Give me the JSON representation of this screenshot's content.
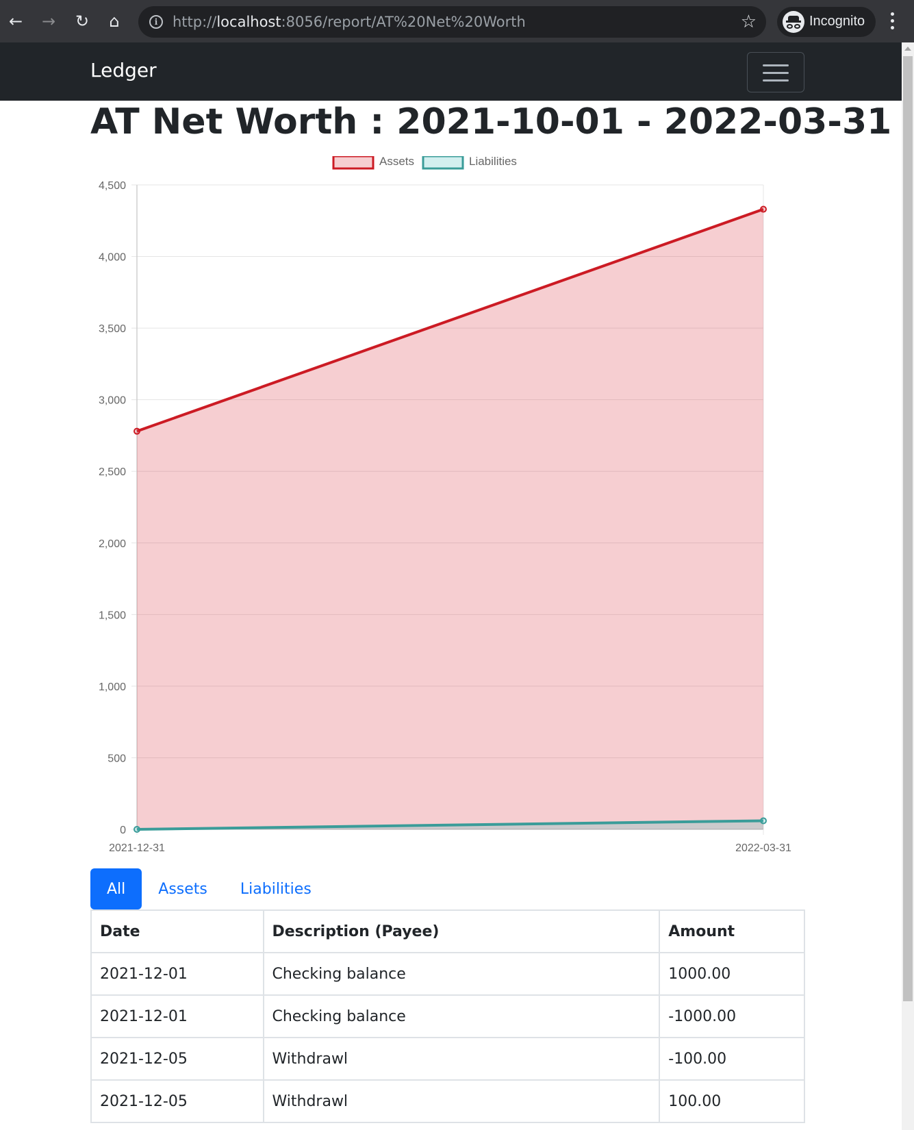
{
  "browser": {
    "url_prefix": "http://",
    "url_host": "localhost",
    "url_rest": ":8056/report/AT%20Net%20Worth",
    "profile_label": "Incognito"
  },
  "navbar": {
    "brand": "Ledger"
  },
  "page": {
    "title": "AT Net Worth : 2021-10-01 - 2022-03-31"
  },
  "chart_data": {
    "type": "area",
    "x": [
      "2021-12-31",
      "2022-03-31"
    ],
    "series": [
      {
        "name": "Assets",
        "values": [
          2780,
          4330
        ],
        "color": "#cc1b24",
        "fill": "rgba(220,60,70,0.25)"
      },
      {
        "name": "Liabilities",
        "values": [
          0,
          60
        ],
        "color": "#3a9c99",
        "fill": "rgba(75,192,192,0.25)"
      }
    ],
    "yticks": [
      "0",
      "500",
      "1,000",
      "1,500",
      "2,000",
      "2,500",
      "3,000",
      "3,500",
      "4,000",
      "4,500"
    ],
    "ylim": [
      0,
      4500
    ],
    "grid": true,
    "legend": "top-center"
  },
  "tabs": [
    {
      "label": "All",
      "active": true
    },
    {
      "label": "Assets",
      "active": false
    },
    {
      "label": "Liabilities",
      "active": false
    }
  ],
  "table": {
    "headers": [
      "Date",
      "Description (Payee)",
      "Amount"
    ],
    "rows": [
      [
        "2021-12-01",
        "Checking balance",
        "1000.00"
      ],
      [
        "2021-12-01",
        "Checking balance",
        "-1000.00"
      ],
      [
        "2021-12-05",
        "Withdrawl",
        "-100.00"
      ],
      [
        "2021-12-05",
        "Withdrawl",
        "100.00"
      ]
    ]
  }
}
